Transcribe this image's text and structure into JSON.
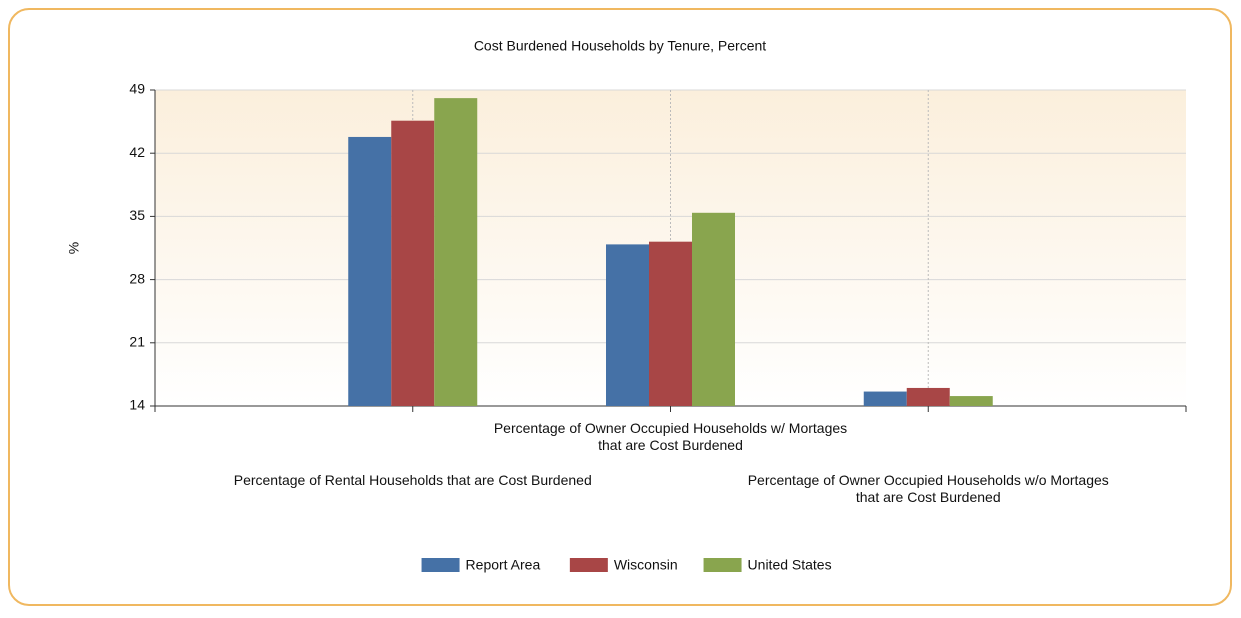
{
  "chart_data": {
    "type": "bar",
    "title": "Cost Burdened Households by Tenure, Percent",
    "y_label": "%",
    "categories": [
      "Percentage of Rental Households that are Cost Burdened",
      "Percentage of Owner Occupied Households w/ Mortages that are Cost Burdened",
      "Percentage of Owner Occupied Households w/o Mortages that are Cost Burdened"
    ],
    "series": [
      {
        "name": "Report Area",
        "color": "#4571a6",
        "values": [
          43.8,
          31.9,
          15.6
        ]
      },
      {
        "name": "Wisconsin",
        "color": "#a84646",
        "values": [
          45.6,
          32.2,
          16.0
        ]
      },
      {
        "name": "United States",
        "color": "#89a54e",
        "values": [
          48.1,
          35.4,
          15.1
        ]
      }
    ],
    "ylim": [
      14,
      49
    ],
    "yticks": [
      14,
      21,
      28,
      35,
      42,
      49
    ],
    "grid": true,
    "legend": "bottom"
  }
}
